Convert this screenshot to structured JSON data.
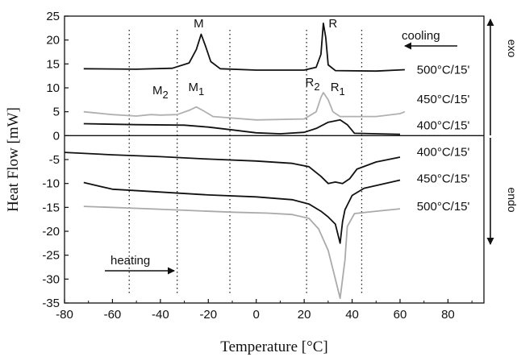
{
  "chart_data": {
    "type": "line",
    "xlabel": "Temperature [°C]",
    "ylabel": "Heat Flow  [mW]",
    "xlim": [
      -80,
      95
    ],
    "ylim": [
      -35,
      25
    ],
    "x_ticks": [
      -80,
      -60,
      -40,
      -20,
      0,
      20,
      40,
      60,
      80
    ],
    "y_ticks": [
      25,
      20,
      15,
      10,
      5,
      0,
      -5,
      -10,
      -15,
      -20,
      -25,
      -30,
      -35
    ],
    "grid": false,
    "dotted_lines_x": [
      -53,
      -33,
      -11,
      21,
      44
    ],
    "series": [
      {
        "name": "500°C/15' cooling",
        "color": "#111111",
        "points": [
          [
            -72,
            14.0
          ],
          [
            -50,
            13.9
          ],
          [
            -35,
            14.1
          ],
          [
            -28,
            15.2
          ],
          [
            -25,
            18.0
          ],
          [
            -23,
            21.2
          ],
          [
            -21,
            18.5
          ],
          [
            -19,
            15.5
          ],
          [
            -15,
            14.0
          ],
          [
            0,
            13.7
          ],
          [
            20,
            13.7
          ],
          [
            25,
            14.3
          ],
          [
            27,
            17.0
          ],
          [
            28,
            23.5
          ],
          [
            29,
            20.5
          ],
          [
            30,
            14.8
          ],
          [
            33,
            13.6
          ],
          [
            50,
            13.5
          ],
          [
            62,
            13.8
          ]
        ]
      },
      {
        "name": "450°C/15' cooling",
        "color": "#b0b0b0",
        "points": [
          [
            -72,
            5.0
          ],
          [
            -60,
            4.4
          ],
          [
            -50,
            4.1
          ],
          [
            -44,
            4.4
          ],
          [
            -40,
            4.3
          ],
          [
            -33,
            4.4
          ],
          [
            -28,
            5.3
          ],
          [
            -25,
            6.0
          ],
          [
            -22,
            5.2
          ],
          [
            -18,
            4.0
          ],
          [
            0,
            3.3
          ],
          [
            20,
            3.5
          ],
          [
            25,
            5.0
          ],
          [
            27,
            8.0
          ],
          [
            28,
            9.0
          ],
          [
            30,
            7.5
          ],
          [
            32,
            5.0
          ],
          [
            35,
            4.0
          ],
          [
            50,
            4.0
          ],
          [
            60,
            4.6
          ],
          [
            62,
            5.0
          ]
        ]
      },
      {
        "name": "400°C/15' cooling",
        "color": "#111111",
        "points": [
          [
            -72,
            2.5
          ],
          [
            -50,
            2.3
          ],
          [
            -30,
            2.2
          ],
          [
            -20,
            1.8
          ],
          [
            -10,
            1.2
          ],
          [
            0,
            0.6
          ],
          [
            10,
            0.4
          ],
          [
            20,
            0.7
          ],
          [
            25,
            1.5
          ],
          [
            30,
            2.8
          ],
          [
            35,
            3.3
          ],
          [
            38,
            2.3
          ],
          [
            41,
            0.5
          ],
          [
            50,
            0.4
          ],
          [
            60,
            0.3
          ]
        ]
      },
      {
        "name": "400°C/15' heating",
        "color": "#111111",
        "points": [
          [
            -80,
            -3.5
          ],
          [
            -60,
            -4.0
          ],
          [
            -40,
            -4.4
          ],
          [
            -20,
            -4.9
          ],
          [
            0,
            -5.3
          ],
          [
            15,
            -5.8
          ],
          [
            22,
            -6.5
          ],
          [
            27,
            -8.5
          ],
          [
            30,
            -10.0
          ],
          [
            33,
            -9.7
          ],
          [
            36,
            -10.0
          ],
          [
            39,
            -9.0
          ],
          [
            42,
            -7.0
          ],
          [
            50,
            -5.5
          ],
          [
            60,
            -4.5
          ]
        ]
      },
      {
        "name": "450°C/15' heating",
        "color": "#111111",
        "points": [
          [
            -72,
            -9.8
          ],
          [
            -60,
            -11.2
          ],
          [
            -40,
            -11.8
          ],
          [
            -20,
            -12.4
          ],
          [
            0,
            -12.8
          ],
          [
            15,
            -13.4
          ],
          [
            22,
            -14.3
          ],
          [
            27,
            -15.8
          ],
          [
            30,
            -17.0
          ],
          [
            33,
            -18.5
          ],
          [
            35,
            -22.5
          ],
          [
            36,
            -18.0
          ],
          [
            37,
            -15.5
          ],
          [
            40,
            -12.5
          ],
          [
            45,
            -11.0
          ],
          [
            60,
            -9.3
          ]
        ]
      },
      {
        "name": "500°C/15' heating",
        "color": "#aaaaaa",
        "points": [
          [
            -72,
            -14.8
          ],
          [
            -50,
            -15.2
          ],
          [
            -30,
            -15.6
          ],
          [
            -10,
            -16.0
          ],
          [
            5,
            -16.2
          ],
          [
            15,
            -16.5
          ],
          [
            22,
            -17.3
          ],
          [
            26,
            -19.5
          ],
          [
            30,
            -24.0
          ],
          [
            33,
            -30.0
          ],
          [
            35,
            -34.0
          ],
          [
            37,
            -26.0
          ],
          [
            38,
            -19.0
          ],
          [
            41,
            -16.3
          ],
          [
            50,
            -15.8
          ],
          [
            60,
            -15.3
          ]
        ]
      }
    ],
    "annotations": [
      {
        "id": "M",
        "text": "M",
        "x": -24,
        "y": 23.5
      },
      {
        "id": "R",
        "text": "R",
        "x": 32,
        "y": 23.5
      },
      {
        "id": "M2",
        "text": "M",
        "sub": "2",
        "x": -40,
        "y": 9.5
      },
      {
        "id": "M1",
        "text": "M",
        "sub": "1",
        "x": -25,
        "y": 10.2
      },
      {
        "id": "R2",
        "text": "R",
        "sub": "2",
        "x": 23.5,
        "y": 11.2
      },
      {
        "id": "R1",
        "text": "R",
        "sub": "1",
        "x": 34,
        "y": 10.2
      }
    ],
    "curve_labels": [
      {
        "id": "c500",
        "text": "500°C/15'",
        "x": 67,
        "y": 13.8
      },
      {
        "id": "c450",
        "text": "450°C/15'",
        "x": 67,
        "y": 7.6
      },
      {
        "id": "c400",
        "text": "400°C/15'",
        "x": 67,
        "y": 2.2
      },
      {
        "id": "h400",
        "text": "400°C/15'",
        "x": 67,
        "y": -3.4
      },
      {
        "id": "h450",
        "text": "450°C/15'",
        "x": 67,
        "y": -9.0
      },
      {
        "id": "h500",
        "text": "500°C/15'",
        "x": 67,
        "y": -14.8
      }
    ],
    "arrows": {
      "cooling_label": "cooling",
      "heating_label": "heating",
      "exo_label": "exo",
      "endo_label": "endo"
    }
  }
}
